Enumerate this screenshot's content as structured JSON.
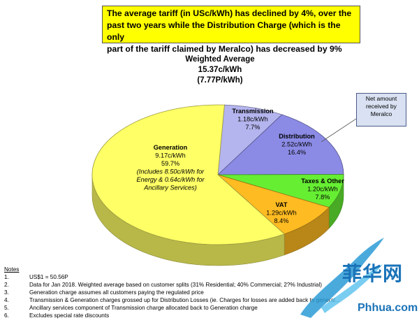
{
  "headline": {
    "lines": [
      "The average tariff (in USc/kWh) has declined by 4%, over the",
      "past two years while the Distribution Charge (which is the only",
      "part of the tariff claimed by Meralco) has decreased by 9%"
    ]
  },
  "weighted_average": {
    "lines": [
      "Weighted Average",
      "15.37c/kWh",
      "(7.77P/kWh)"
    ]
  },
  "callout": {
    "lines": [
      "Net amount",
      "received by",
      "Meralco"
    ]
  },
  "chart_data": {
    "type": "pie",
    "title": "",
    "slices": [
      {
        "name": "Generation",
        "value_label": "9.17c/kWh",
        "value": 9.17,
        "percent": 59.7,
        "extra": [
          "(Includes  8.50c/kWh for",
          "Energy & 0.64c/kWh for",
          "Ancillary Services)"
        ],
        "color": "#ffff66"
      },
      {
        "name": "Transmission",
        "value_label": "1.18c/kWh",
        "value": 1.18,
        "percent": 7.7,
        "color": "#b4b4ee"
      },
      {
        "name": "Distribution",
        "value_label": "2.52c/kWh",
        "value": 2.52,
        "percent": 16.4,
        "color": "#8b8be6"
      },
      {
        "name": "Taxes & Other",
        "value_label": "1.20c/kWh",
        "value": 1.2,
        "percent": 7.8,
        "color": "#66ee33"
      },
      {
        "name": "VAT",
        "value_label": "1.29c/kWh",
        "value": 1.29,
        "percent": 8.4,
        "color": "#ffbb22"
      }
    ]
  },
  "notes": {
    "title": "Notes",
    "items": [
      {
        "num": "1.",
        "text": "US$1 = 50.56P"
      },
      {
        "num": "2.",
        "text": "Data for Jan 2018.  Weighted average based on customer splits (31% Residential; 40% Commercial; 2?% Industrial)"
      },
      {
        "num": "3.",
        "text": "Generation charge assumes all customers paying the regulated price"
      },
      {
        "num": "4.",
        "text": "Transmission & Generation charges grossed up for Distribution Losses (ie. Charges for losses are added back to general..."
      },
      {
        "num": "5.",
        "text": "Ancillary services component of Transmission charge allocated back to Generation charge"
      },
      {
        "num": "6.",
        "text": "Excludes special rate discounts"
      }
    ]
  },
  "watermark": {
    "brand": "菲华网",
    "url": "Phhua.com"
  }
}
